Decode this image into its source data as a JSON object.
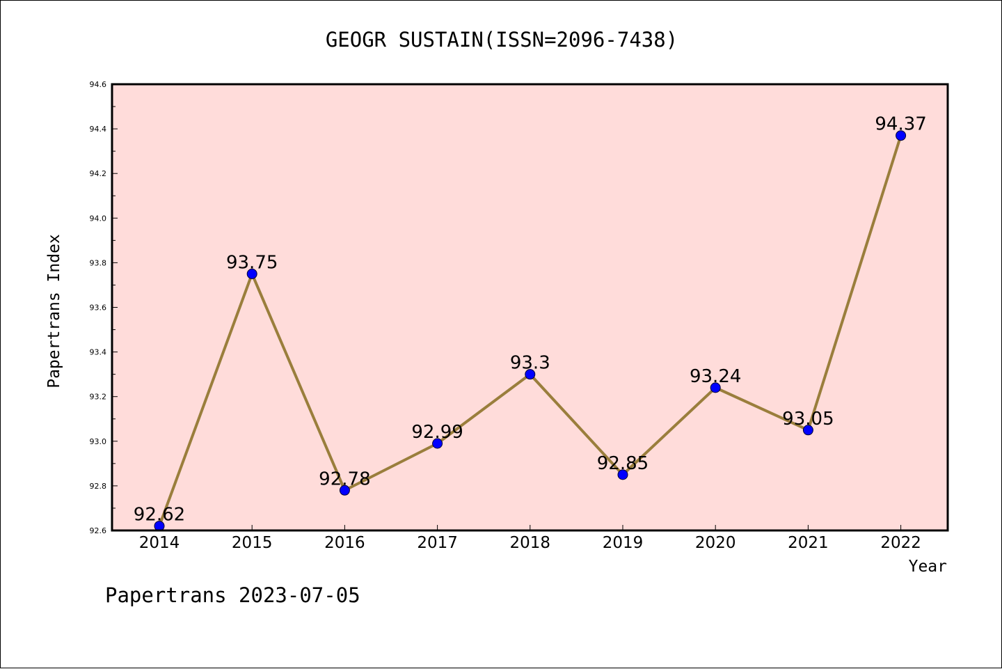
{
  "colors": {
    "plot_background": "#FFDCDA",
    "line": "#9A7E3C",
    "marker": "#0000FF",
    "axis": "#000000"
  },
  "footer": {
    "text": "Papertrans 2023-07-05"
  },
  "chart_data": {
    "type": "line",
    "title": "GEOGR SUSTAIN(ISSN=2096-7438)",
    "xlabel": "Year",
    "ylabel": "Papertrans Index",
    "categories": [
      "2014",
      "2015",
      "2016",
      "2017",
      "2018",
      "2019",
      "2020",
      "2021",
      "2022"
    ],
    "series": [
      {
        "values": [
          92.62,
          93.75,
          92.78,
          92.99,
          93.3,
          92.85,
          93.24,
          93.05,
          94.37
        ],
        "labels": [
          "92.62",
          "93.75",
          "92.78",
          "92.99",
          "93.3",
          "92.85",
          "93.24",
          "93.05",
          "94.37"
        ]
      }
    ],
    "ylim": [
      92.6,
      94.6
    ],
    "yticks": [
      "92.6",
      "92.8",
      "93.0",
      "93.2",
      "93.4",
      "93.6",
      "93.8",
      "94.0",
      "94.2",
      "94.4",
      "94.6"
    ],
    "grid": false,
    "legend": "none"
  }
}
